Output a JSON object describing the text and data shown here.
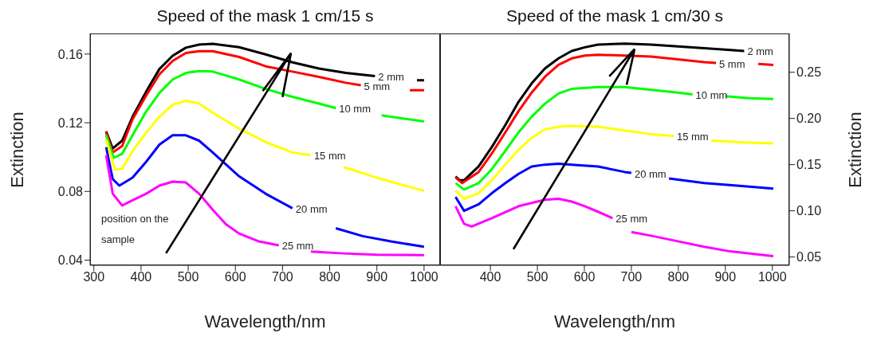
{
  "chart_data": [
    {
      "type": "line",
      "title": "Speed of the mask 1 cm/15 s",
      "xlabel": "Wavelength/nm",
      "ylabel": "Extinction",
      "xlim": [
        292,
        1034
      ],
      "xticks": [
        300,
        400,
        500,
        600,
        700,
        800,
        900,
        1000
      ],
      "ylim": [
        0.037,
        0.172
      ],
      "yticks": [
        {
          "value": 0.04,
          "label": "0.04"
        },
        {
          "value": 0.08,
          "label": "0.08"
        },
        {
          "value": 0.12,
          "label": "0.12"
        },
        {
          "value": 0.16,
          "label": "0.16"
        }
      ],
      "series": [
        {
          "name": "2 mm",
          "color": "#000000",
          "x": [
            326,
            340,
            360,
            382,
            411,
            439,
            467,
            495,
            523,
            552,
            608,
            664,
            721,
            777,
            834,
            896,
            940,
            985,
            1000
          ],
          "values": [
            0.115,
            0.105,
            0.1096,
            0.1235,
            0.1382,
            0.1513,
            0.159,
            0.1637,
            0.1655,
            0.166,
            0.164,
            0.1598,
            0.1552,
            0.1516,
            0.149,
            0.1472,
            null,
            0.1448,
            0.1448
          ]
        },
        {
          "name": "5 mm",
          "color": "#ff0000",
          "x": [
            326,
            340,
            360,
            382,
            411,
            439,
            467,
            495,
            523,
            552,
            608,
            664,
            721,
            777,
            834,
            866,
            920,
            970,
            1000
          ],
          "values": [
            0.1146,
            0.1027,
            0.1065,
            0.122,
            0.1359,
            0.1482,
            0.156,
            0.1606,
            0.1617,
            0.1617,
            0.1583,
            0.1529,
            0.1498,
            0.1467,
            0.1433,
            0.1418,
            null,
            0.139,
            0.139
          ]
        },
        {
          "name": "10 mm",
          "color": "#00ff00",
          "x": [
            326,
            342,
            360,
            382,
            411,
            439,
            467,
            495,
            523,
            552,
            608,
            664,
            721,
            777,
            813,
            860,
            910,
            950,
            1000
          ],
          "values": [
            0.1127,
            0.0996,
            0.1019,
            0.1127,
            0.1266,
            0.1374,
            0.1452,
            0.149,
            0.1501,
            0.1498,
            0.1452,
            0.1397,
            0.1351,
            0.1312,
            0.1285,
            null,
            0.1243,
            0.1227,
            0.1207
          ]
        },
        {
          "name": "15 mm",
          "color": "#ffff00",
          "x": [
            326,
            345,
            360,
            382,
            411,
            439,
            467,
            495,
            523,
            552,
            608,
            664,
            721,
            760,
            800,
            830,
            900,
            950,
            1000
          ],
          "values": [
            0.1104,
            0.0926,
            0.0934,
            0.1034,
            0.1143,
            0.1235,
            0.1305,
            0.1328,
            0.1312,
            0.1258,
            0.1166,
            0.1088,
            0.1027,
            0.1011,
            null,
            0.0942,
            0.088,
            0.0841,
            0.0803
          ]
        },
        {
          "name": "20 mm",
          "color": "#0000ff",
          "x": [
            326,
            340,
            354,
            382,
            411,
            439,
            467,
            495,
            523,
            552,
            580,
            608,
            664,
            721,
            770,
            813,
            870,
            930,
            1000
          ],
          "values": [
            0.1058,
            0.0872,
            0.0834,
            0.088,
            0.0973,
            0.1073,
            0.1127,
            0.1127,
            0.1096,
            0.1027,
            0.0957,
            0.0888,
            0.0787,
            0.0702,
            null,
            0.0586,
            0.054,
            0.0509,
            0.0478
          ]
        },
        {
          "name": "25 mm",
          "color": "#ff00ff",
          "x": [
            326,
            340,
            360,
            382,
            411,
            439,
            467,
            495,
            523,
            552,
            580,
            608,
            650,
            692,
            730,
            760,
            830,
            900,
            1000
          ],
          "values": [
            0.1011,
            0.0787,
            0.0718,
            0.0749,
            0.0787,
            0.0834,
            0.0857,
            0.0852,
            0.0787,
            0.0694,
            0.0609,
            0.0555,
            0.0509,
            0.0486,
            null,
            0.045,
            0.0439,
            0.0432,
            0.0429
          ]
        }
      ],
      "annotations": [
        "position on the sample"
      ]
    },
    {
      "type": "line",
      "title": "Speed of the mask 1 cm/30 s",
      "xlabel": "Wavelength/nm",
      "y2label": "Extinction",
      "xlim": [
        293,
        1036
      ],
      "xticks": [
        400,
        500,
        600,
        700,
        800,
        900,
        1000
      ],
      "y2lim": [
        0.041,
        0.292
      ],
      "y2ticks": [
        {
          "value": 0.05,
          "label": "0.05"
        },
        {
          "value": 0.1,
          "label": "0.10"
        },
        {
          "value": 0.15,
          "label": "0.15"
        },
        {
          "value": 0.2,
          "label": "0.20"
        },
        {
          "value": 0.25,
          "label": "0.25"
        }
      ],
      "series": [
        {
          "name": "2 mm",
          "color": "#000000",
          "axis": "y2",
          "x": [
            326,
            335,
            344,
            375,
            403,
            432,
            460,
            488,
            516,
            545,
            573,
            601,
            629,
            686,
            742,
            799,
            855,
            911,
            940
          ],
          "values": [
            0.137,
            0.133,
            0.133,
            0.148,
            0.169,
            0.193,
            0.218,
            0.238,
            0.254,
            0.265,
            0.273,
            0.277,
            0.28,
            0.281,
            0.28,
            0.278,
            0.276,
            0.274,
            0.273
          ]
        },
        {
          "name": "5 mm",
          "color": "#ff0000",
          "axis": "y2",
          "x": [
            326,
            340,
            375,
            403,
            432,
            460,
            488,
            516,
            545,
            573,
            601,
            629,
            686,
            742,
            799,
            855,
            880,
            930,
            970,
            1002
          ],
          "values": [
            0.136,
            0.13,
            0.142,
            0.162,
            0.185,
            0.208,
            0.228,
            0.245,
            0.258,
            0.265,
            0.268,
            0.269,
            0.268,
            0.267,
            0.264,
            0.261,
            0.26,
            null,
            0.259,
            0.258
          ]
        },
        {
          "name": "10 mm",
          "color": "#00ff00",
          "axis": "y2",
          "x": [
            326,
            344,
            375,
            403,
            432,
            460,
            488,
            516,
            545,
            573,
            629,
            686,
            742,
            799,
            830,
            865,
            900,
            950,
            1002
          ],
          "values": [
            0.13,
            0.123,
            0.13,
            0.145,
            0.165,
            0.185,
            0.202,
            0.216,
            0.227,
            0.232,
            0.234,
            0.234,
            0.231,
            0.228,
            0.226,
            null,
            0.224,
            0.222,
            0.221
          ]
        },
        {
          "name": "15 mm",
          "color": "#ffff00",
          "axis": "y2",
          "x": [
            326,
            344,
            375,
            403,
            432,
            460,
            488,
            516,
            545,
            573,
            629,
            686,
            742,
            790,
            830,
            870,
            940,
            1002
          ],
          "values": [
            0.122,
            0.113,
            0.119,
            0.133,
            0.15,
            0.166,
            0.179,
            0.188,
            0.191,
            0.192,
            0.191,
            0.187,
            0.183,
            0.181,
            null,
            0.176,
            0.174,
            0.173
          ]
        },
        {
          "name": "20 mm",
          "color": "#0000ff",
          "axis": "y2",
          "x": [
            326,
            344,
            375,
            403,
            432,
            460,
            488,
            516,
            545,
            573,
            629,
            686,
            700,
            740,
            780,
            855,
            930,
            1002
          ],
          "values": [
            0.115,
            0.1,
            0.107,
            0.119,
            0.13,
            0.14,
            0.148,
            0.15,
            0.151,
            0.15,
            0.148,
            0.142,
            0.141,
            null,
            0.135,
            0.13,
            0.127,
            0.124
          ]
        },
        {
          "name": "25 mm",
          "color": "#ff00ff",
          "axis": "y2",
          "x": [
            326,
            344,
            360,
            403,
            460,
            516,
            545,
            573,
            601,
            629,
            660,
            680,
            700,
            742,
            799,
            855,
            911,
            1002
          ],
          "values": [
            0.105,
            0.086,
            0.083,
            0.092,
            0.105,
            0.112,
            0.113,
            0.11,
            0.105,
            0.099,
            0.092,
            null,
            0.077,
            0.073,
            0.067,
            0.061,
            0.056,
            0.051
          ]
        }
      ]
    }
  ]
}
